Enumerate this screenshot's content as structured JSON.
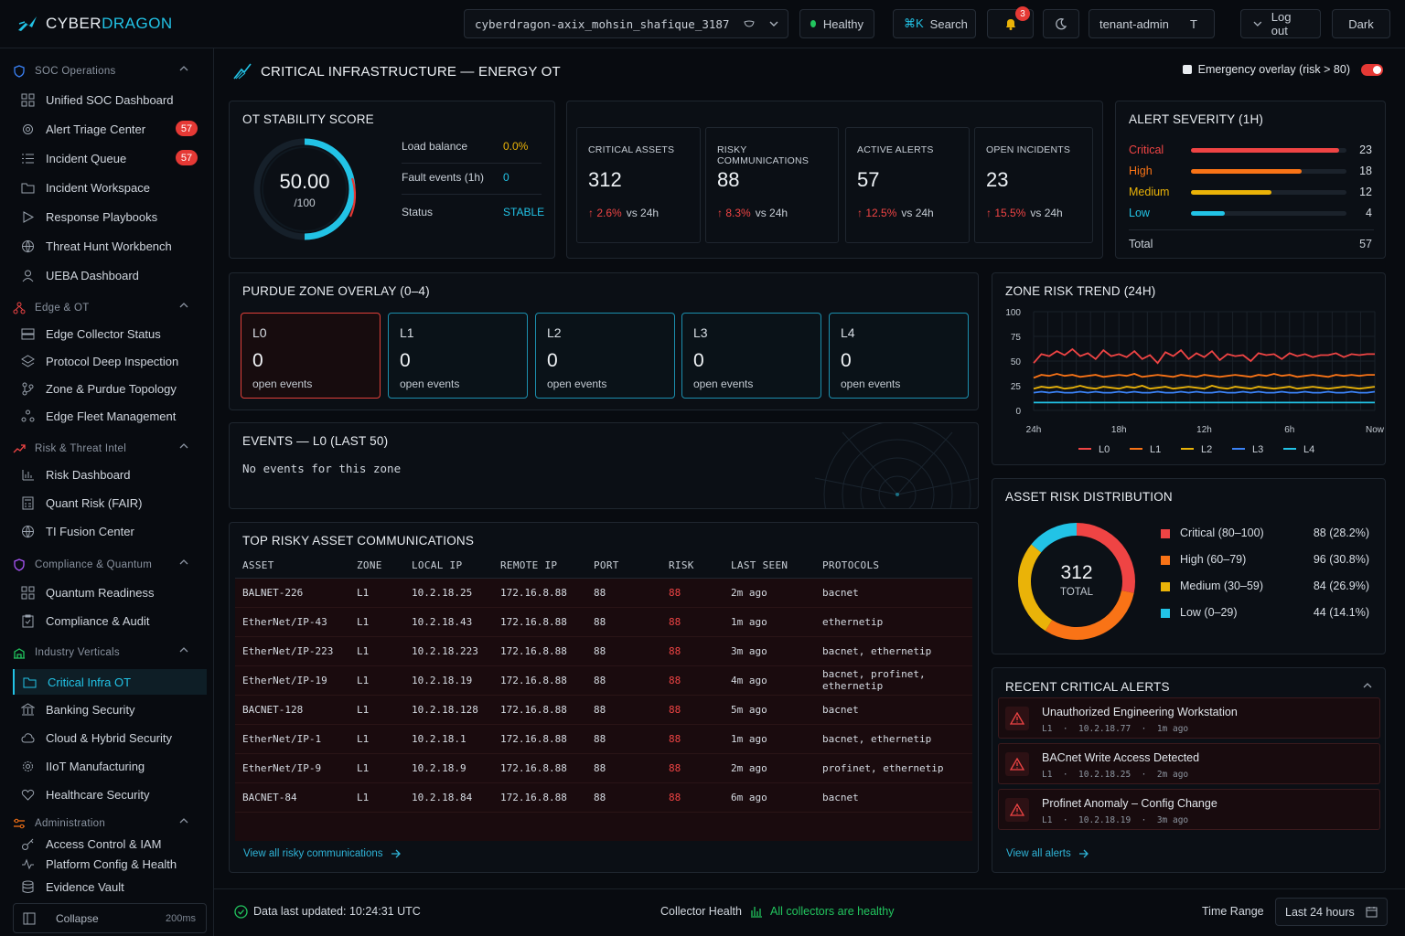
{
  "brand": {
    "part1": "CYBER",
    "part2": "DRAGON"
  },
  "topbar": {
    "tenant_select": "cyberdragon-axix_mohsin_shafique_3187",
    "health": "Healthy",
    "search_shortcut": "⌘K",
    "search_label": "Search",
    "notifications_count": "3",
    "tenant_role": "tenant-admin",
    "tenant_role_initial": "T",
    "logout": "Log out",
    "theme": "Dark"
  },
  "sidebar": {
    "groups": [
      {
        "label": "SOC Operations"
      },
      {
        "label": "Edge & OT"
      },
      {
        "label": "Risk & Threat Intel"
      },
      {
        "label": "Compliance & Quantum"
      },
      {
        "label": "Industry Verticals"
      },
      {
        "label": "Administration"
      }
    ],
    "items": [
      {
        "label": "Unified SOC Dashboard"
      },
      {
        "label": "Alert Triage Center",
        "badge": "57"
      },
      {
        "label": "Incident Queue",
        "badge": "57"
      },
      {
        "label": "Incident Workspace"
      },
      {
        "label": "Response Playbooks"
      },
      {
        "label": "Threat Hunt Workbench"
      },
      {
        "label": "UEBA Dashboard"
      },
      {
        "label": "Edge Collector Status"
      },
      {
        "label": "Protocol Deep Inspection"
      },
      {
        "label": "Zone & Purdue Topology"
      },
      {
        "label": "Edge Fleet Management"
      },
      {
        "label": "Risk Dashboard"
      },
      {
        "label": "Quant Risk (FAIR)"
      },
      {
        "label": "TI Fusion Center"
      },
      {
        "label": "Quantum Readiness"
      },
      {
        "label": "Compliance & Audit"
      },
      {
        "label": "Critical Infra OT"
      },
      {
        "label": "Banking Security"
      },
      {
        "label": "Cloud & Hybrid Security"
      },
      {
        "label": "IIoT Manufacturing"
      },
      {
        "label": "Healthcare Security"
      },
      {
        "label": "Access Control & IAM"
      },
      {
        "label": "Platform Config & Health"
      },
      {
        "label": "Evidence Vault"
      }
    ],
    "collapse_label": "Collapse",
    "latency": "200ms"
  },
  "page": {
    "title": "CRITICAL INFRASTRUCTURE — ENERGY OT",
    "emergency_label": "Emergency overlay (risk > 80)",
    "emergency_on": true
  },
  "stability": {
    "title": "OT STABILITY SCORE",
    "score": "50.00",
    "max": "/100",
    "score_fraction": 0.5,
    "rows": [
      {
        "label": "Load balance",
        "value": "0.0%"
      },
      {
        "label": "Fault events (1h)",
        "value": "0"
      },
      {
        "label": "Status",
        "value": "STABLE"
      }
    ]
  },
  "kpis": [
    {
      "label": "CRITICAL ASSETS",
      "value": "312",
      "delta": "2.6%",
      "suffix": "vs 24h"
    },
    {
      "label": "RISKY COMMUNICATIONS",
      "value": "88",
      "delta": "8.3%",
      "suffix": "vs 24h"
    },
    {
      "label": "ACTIVE ALERTS",
      "value": "57",
      "delta": "12.5%",
      "suffix": "vs 24h"
    },
    {
      "label": "OPEN INCIDENTS",
      "value": "23",
      "delta": "15.5%",
      "suffix": "vs 24h"
    }
  ],
  "severity": {
    "title": "ALERT SEVERITY (1H)",
    "rows": [
      {
        "label": "Critical",
        "value": "23",
        "fraction": 0.95,
        "color": "#ef4444"
      },
      {
        "label": "High",
        "value": "18",
        "fraction": 0.71,
        "color": "#f97316"
      },
      {
        "label": "Medium",
        "value": "12",
        "fraction": 0.52,
        "color": "#eab308"
      },
      {
        "label": "Low",
        "value": "4",
        "fraction": 0.22,
        "color": "#22c3e6"
      }
    ],
    "total_label": "Total",
    "total": "57"
  },
  "purdue": {
    "title": "PURDUE ZONE OVERLAY (0–4)",
    "zones": [
      {
        "name": "L0",
        "count": "0",
        "text": "open events"
      },
      {
        "name": "L1",
        "count": "0",
        "text": "open events"
      },
      {
        "name": "L2",
        "count": "0",
        "text": "open events"
      },
      {
        "name": "L3",
        "count": "0",
        "text": "open events"
      },
      {
        "name": "L4",
        "count": "0",
        "text": "open events"
      }
    ]
  },
  "events": {
    "title": "EVENTS — L0 (LAST 50)",
    "empty": "No events for this zone"
  },
  "risky": {
    "title": "TOP RISKY ASSET COMMUNICATIONS",
    "columns": [
      "ASSET",
      "ZONE",
      "LOCAL IP",
      "REMOTE IP",
      "PORT",
      "RISK",
      "LAST SEEN",
      "PROTOCOLS"
    ],
    "rows": [
      [
        "BALNET-226",
        "L1",
        "10.2.18.25",
        "172.16.8.88",
        "88",
        "88",
        "2m ago",
        "bacnet"
      ],
      [
        "EtherNet/IP-43",
        "L1",
        "10.2.18.43",
        "172.16.8.88",
        "88",
        "88",
        "1m ago",
        "ethernetip"
      ],
      [
        "EtherNet/IP-223",
        "L1",
        "10.2.18.223",
        "172.16.8.88",
        "88",
        "88",
        "3m ago",
        "bacnet, ethernetip"
      ],
      [
        "EtherNet/IP-19",
        "L1",
        "10.2.18.19",
        "172.16.8.88",
        "88",
        "88",
        "4m ago",
        "bacnet, profinet, ethernetip"
      ],
      [
        "BACNET-128",
        "L1",
        "10.2.18.128",
        "172.16.8.88",
        "88",
        "88",
        "5m ago",
        "bacnet"
      ],
      [
        "EtherNet/IP-1",
        "L1",
        "10.2.18.1",
        "172.16.8.88",
        "88",
        "88",
        "1m ago",
        "bacnet, ethernetip"
      ],
      [
        "EtherNet/IP-9",
        "L1",
        "10.2.18.9",
        "172.16.8.88",
        "88",
        "88",
        "2m ago",
        "profinet, ethernetip"
      ],
      [
        "BACNET-84",
        "L1",
        "10.2.18.84",
        "172.16.8.88",
        "88",
        "88",
        "6m ago",
        "bacnet"
      ]
    ],
    "view_all": "View all risky communications"
  },
  "trend": {
    "title": "ZONE RISK TREND (24H)",
    "chart_data": {
      "type": "line",
      "yticks": [
        "100",
        "75",
        "50",
        "25",
        "0"
      ],
      "xticks": [
        "24h",
        "18h",
        "12h",
        "6h",
        "Now"
      ],
      "ylim": [
        0,
        100
      ],
      "series": [
        {
          "name": "L0",
          "color": "#ef4444",
          "values": [
            48,
            57,
            55,
            60,
            56,
            62,
            55,
            58,
            52,
            61,
            55,
            57,
            54,
            60,
            52,
            56,
            48,
            59,
            55,
            61,
            52,
            58,
            54,
            60,
            51,
            57,
            55,
            56,
            50,
            58,
            56,
            57,
            52,
            58,
            55,
            57,
            54,
            56,
            56,
            58,
            54,
            57,
            56,
            57,
            57
          ]
        },
        {
          "name": "L1",
          "color": "#f97316",
          "values": [
            33,
            36,
            35,
            37,
            35,
            36,
            34,
            35,
            36,
            34,
            35,
            36,
            35,
            37,
            34,
            35,
            36,
            35,
            34,
            36,
            35,
            34,
            36,
            35,
            34,
            35,
            36,
            35,
            34,
            36,
            35,
            37,
            35,
            36,
            34,
            35,
            36,
            35,
            34,
            36,
            35,
            36,
            35,
            36,
            36
          ]
        },
        {
          "name": "L2",
          "color": "#eab308",
          "values": [
            22,
            24,
            23,
            24,
            22,
            23,
            25,
            23,
            22,
            24,
            23,
            22,
            24,
            23,
            25,
            22,
            23,
            24,
            22,
            23,
            24,
            23,
            22,
            25,
            23,
            22,
            24,
            23,
            22,
            24,
            23,
            22,
            23,
            24,
            22,
            23,
            24,
            23,
            22,
            23,
            24,
            23,
            22,
            23,
            24
          ]
        },
        {
          "name": "L3",
          "color": "#3b82f6",
          "values": [
            18,
            19,
            18,
            19,
            18,
            18,
            19,
            18,
            19,
            18,
            18,
            19,
            18,
            19,
            18,
            18,
            19,
            18,
            18,
            19,
            18,
            19,
            18,
            18,
            19,
            18,
            18,
            19,
            18,
            19,
            18,
            18,
            19,
            18,
            18,
            19,
            18,
            18,
            19,
            18,
            18,
            19,
            18,
            18,
            19
          ]
        },
        {
          "name": "L4",
          "color": "#22c3e6",
          "values": [
            8,
            8,
            8,
            8,
            8,
            8,
            8,
            8,
            8,
            8,
            8,
            8,
            8,
            8,
            8,
            8,
            8,
            8,
            8,
            8,
            8,
            8,
            8,
            8,
            8,
            8,
            8,
            8,
            8,
            8,
            8,
            8,
            8,
            8,
            8,
            8,
            8,
            8,
            8,
            8,
            8,
            8,
            8,
            8,
            8
          ]
        }
      ]
    }
  },
  "distribution": {
    "title": "ASSET RISK DISTRIBUTION",
    "total": "312",
    "total_label": "TOTAL",
    "chart_data": {
      "type": "pie",
      "slices": [
        {
          "label": "Critical (80–100)",
          "value": 88,
          "text": "88 (28.2%)",
          "color": "#ef4444"
        },
        {
          "label": "High (60–79)",
          "value": 96,
          "text": "96 (30.8%)",
          "color": "#f97316"
        },
        {
          "label": "Medium (30–59)",
          "value": 84,
          "text": "84 (26.9%)",
          "color": "#eab308"
        },
        {
          "label": "Low (0–29)",
          "value": 44,
          "text": "44 (14.1%)",
          "color": "#22c3e6"
        }
      ]
    }
  },
  "recent": {
    "title": "RECENT CRITICAL ALERTS",
    "alerts": [
      {
        "title": "Unauthorized Engineering Workstation",
        "meta": "L1  ·  10.2.18.77  ·  1m ago"
      },
      {
        "title": "BACnet Write Access Detected",
        "meta": "L1  ·  10.2.18.25  ·  2m ago"
      },
      {
        "title": "Profinet Anomaly – Config Change",
        "meta": "L1  ·  10.2.18.19  ·  3m ago"
      }
    ],
    "view_all": "View all alerts"
  },
  "footer": {
    "updated_label": "Data last updated:",
    "updated": "10:24:31 UTC",
    "collector_label": "Collector Health",
    "collector_status": "All collectors are healthy",
    "range_label": "Time Range",
    "range_value": "Last 24 hours"
  }
}
